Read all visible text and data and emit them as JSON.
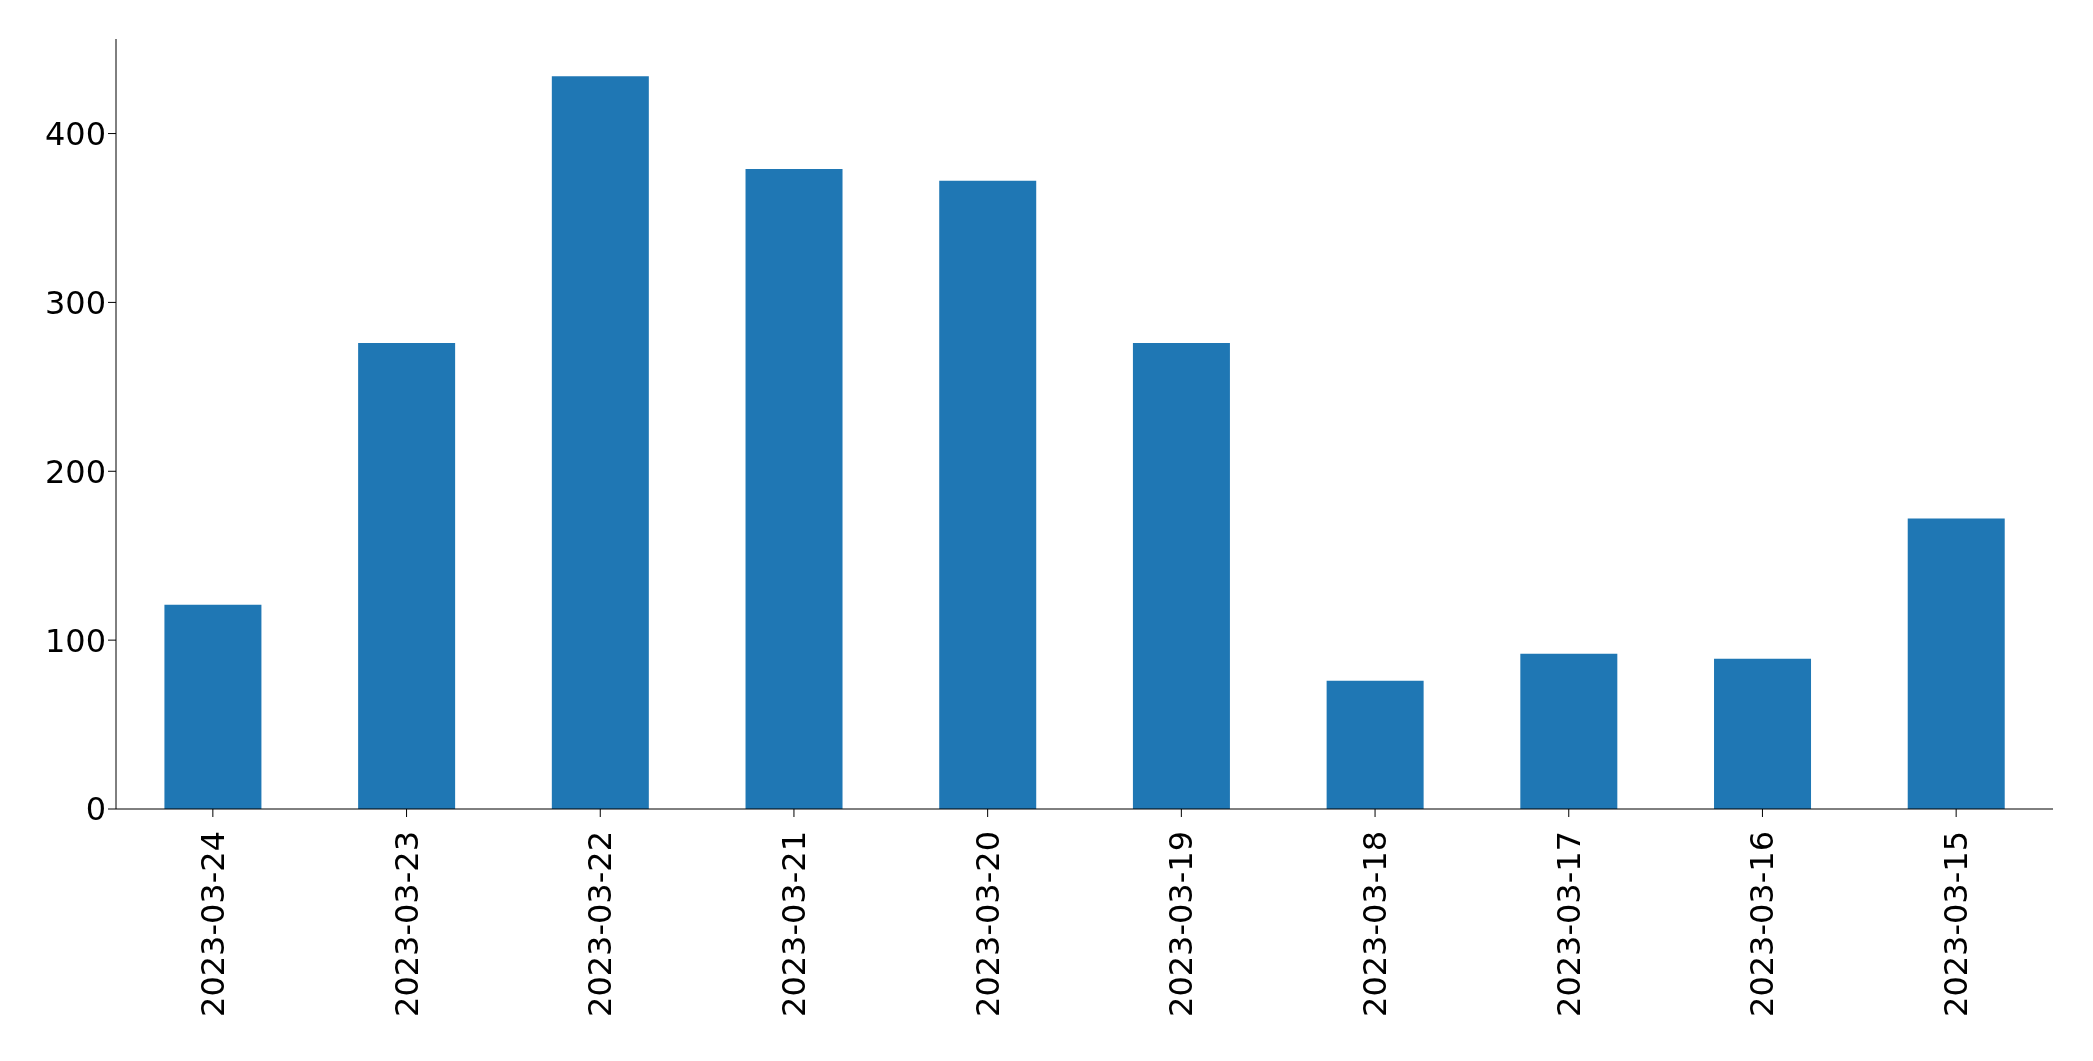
{
  "chart_data": {
    "type": "bar",
    "categories": [
      "2023-03-24",
      "2023-03-23",
      "2023-03-22",
      "2023-03-21",
      "2023-03-20",
      "2023-03-19",
      "2023-03-18",
      "2023-03-17",
      "2023-03-16",
      "2023-03-15"
    ],
    "values": [
      121,
      276,
      434,
      379,
      372,
      276,
      76,
      92,
      89,
      172
    ],
    "color": "#1f77b4",
    "ylim": [
      0,
      456
    ],
    "yticks": [
      0,
      100,
      200,
      300,
      400
    ],
    "grid": false
  }
}
